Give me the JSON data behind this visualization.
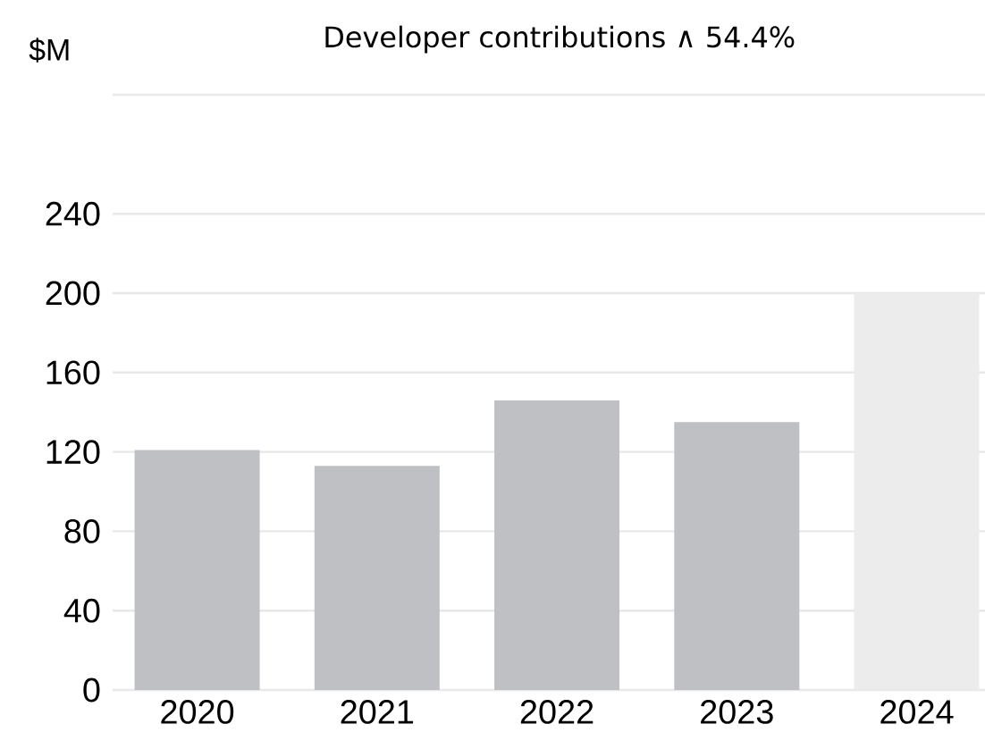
{
  "chart_data": {
    "type": "bar",
    "title": "Developer contributions ∧ 54.4%",
    "ylabel": "$M",
    "categories": [
      "2020",
      "2021",
      "2022",
      "2023",
      "2024"
    ],
    "values": [
      121,
      113,
      146,
      135,
      200
    ],
    "colors": [
      "#bfc0c4",
      "#bfc0c4",
      "#bfc0c4",
      "#bfc0c4",
      "#ececec"
    ],
    "ylim": [
      0,
      300
    ],
    "yticks": [
      0,
      40,
      80,
      120,
      160,
      200,
      240,
      {
        "value": 300,
        "label": null
      }
    ],
    "grid": "y"
  }
}
